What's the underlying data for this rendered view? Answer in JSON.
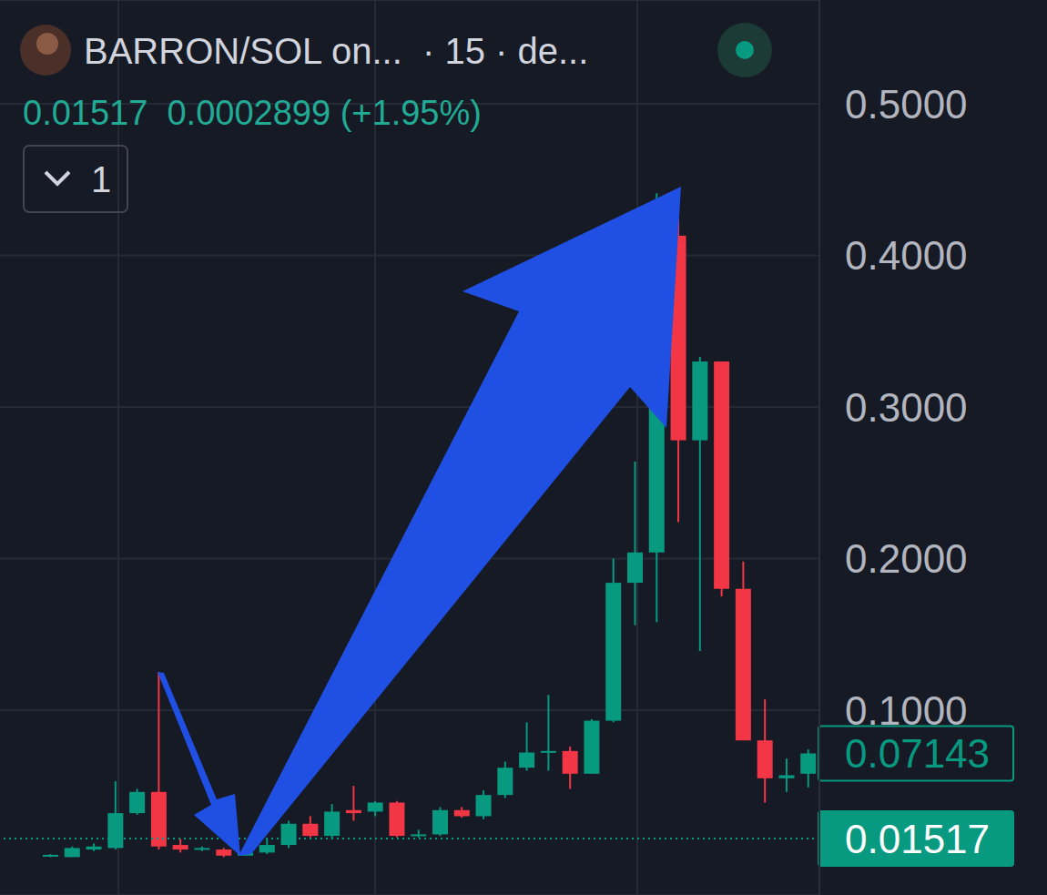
{
  "chart_data": {
    "type": "candlestick",
    "title": "BARRON/SOL on...  · 15 · de...",
    "subtitle": "0.01517  0.0002899 (+1.95%)",
    "annotations": [
      "1"
    ],
    "categories": [
      null,
      null,
      null,
      null,
      null,
      null,
      null,
      null,
      null,
      null,
      null,
      null,
      null,
      null,
      null,
      null,
      null,
      null,
      null,
      null,
      null,
      null,
      null,
      null,
      null,
      null,
      null,
      null,
      null,
      null,
      null,
      null,
      null,
      null,
      null,
      null
    ],
    "open": [
      0.004,
      0.003,
      0.008,
      0.009,
      0.032,
      0.046,
      0.011,
      0.008,
      0.008,
      0.004,
      0.006,
      0.011,
      0.025,
      0.017,
      0.034,
      0.033,
      0.039,
      0.017,
      0.018,
      0.034,
      0.03,
      0.044,
      0.062,
      0.072,
      0.073,
      0.058,
      0.093,
      0.184,
      0.204,
      0.413,
      0.278,
      0.33,
      0.18,
      0.08,
      0.055,
      0.058
    ],
    "high": [
      0.005,
      0.01,
      0.012,
      0.053,
      0.048,
      0.125,
      0.015,
      0.01,
      0.009,
      0.007,
      0.015,
      0.027,
      0.03,
      0.038,
      0.05,
      0.04,
      0.04,
      0.021,
      0.036,
      0.036,
      0.047,
      0.066,
      0.092,
      0.11,
      0.076,
      0.094,
      0.2,
      0.264,
      0.441,
      0.424,
      0.333,
      0.33,
      0.198,
      0.107,
      0.068,
      0.074
    ],
    "low": [
      0.003,
      0.003,
      0.007,
      0.008,
      0.031,
      0.008,
      0.006,
      0.007,
      0.003,
      0.004,
      0.005,
      0.009,
      0.016,
      0.015,
      0.027,
      0.03,
      0.016,
      0.016,
      0.017,
      0.029,
      0.028,
      0.042,
      0.06,
      0.06,
      0.048,
      0.058,
      0.092,
      0.156,
      0.158,
      0.224,
      0.139,
      0.175,
      0.08,
      0.039,
      0.046,
      0.049
    ],
    "close": [
      0.0045,
      0.009,
      0.01,
      0.032,
      0.046,
      0.01,
      0.008,
      0.009,
      0.004,
      0.006,
      0.011,
      0.025,
      0.017,
      0.033,
      0.032,
      0.039,
      0.017,
      0.018,
      0.034,
      0.03,
      0.044,
      0.062,
      0.072,
      0.073,
      0.058,
      0.093,
      0.184,
      0.204,
      0.413,
      0.278,
      0.33,
      0.18,
      0.08,
      0.055,
      0.057,
      0.07143
    ],
    "colors": [
      "#089981",
      "#089981",
      "#089981",
      "#089981",
      "#089981",
      "#f23645",
      "#f23645",
      "#089981",
      "#f23645",
      "#089981",
      "#089981",
      "#089981",
      "#f23645",
      "#089981",
      "#f23645",
      "#089981",
      "#f23645",
      "#089981",
      "#089981",
      "#f23645",
      "#089981",
      "#089981",
      "#089981",
      "#089981",
      "#f23645",
      "#089981",
      "#089981",
      "#089981",
      "#089981",
      "#f23645",
      "#089981",
      "#f23645",
      "#f23645",
      "#f23645",
      "#089981",
      "#089981"
    ],
    "price_lines": [
      {
        "value": 0.07143,
        "line_style": "none",
        "color": "#089981"
      },
      {
        "value": 0.01517,
        "line_style": "dotted",
        "color": "#089981"
      }
    ],
    "ylim": [
      -0.022,
      0.5685
    ],
    "yticks": [
      {
        "value": 0.1,
        "label": "0.1000"
      },
      {
        "value": 0.2,
        "label": "0.2000"
      },
      {
        "value": 0.3,
        "label": "0.3000"
      },
      {
        "value": 0.4,
        "label": "0.4000"
      },
      {
        "value": 0.5,
        "label": "0.5000"
      }
    ],
    "grid": true,
    "tick_labels": "y"
  }
}
